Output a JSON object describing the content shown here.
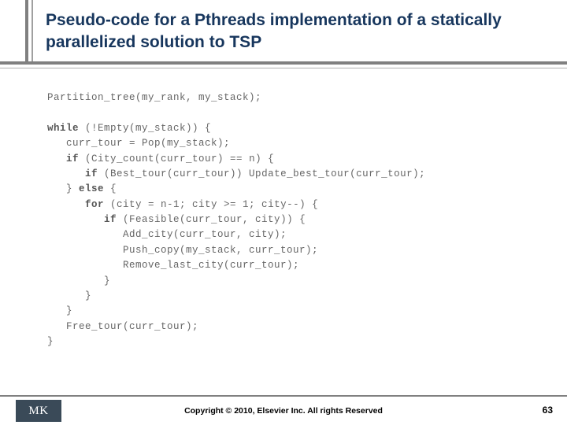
{
  "title": "Pseudo-code for a Pthreads implementation of a statically parallelized solution to TSP",
  "code": {
    "l01": "Partition_tree(my_rank, my_stack);",
    "l02_kw": "while",
    "l02_rest": " (!Empty(my_stack)) {",
    "l03": "   curr_tour = Pop(my_stack);",
    "l04_kw": "if",
    "l04_rest": " (City_count(curr_tour) == n) {",
    "l05_kw": "if",
    "l05_rest": " (Best_tour(curr_tour)) Update_best_tour(curr_tour);",
    "l06a": "   } ",
    "l06_kw": "else",
    "l06b": " {",
    "l07_kw": "for",
    "l07_rest": " (city = n-1; city >= 1; city--) {",
    "l08_kw": "if",
    "l08_rest": " (Feasible(curr_tour, city)) {",
    "l09": "            Add_city(curr_tour, city);",
    "l10": "            Push_copy(my_stack, curr_tour);",
    "l11": "            Remove_last_city(curr_tour);",
    "l12": "         }",
    "l13": "      }",
    "l14": "   }",
    "l15": "   Free_tour(curr_tour);",
    "l16": "}"
  },
  "logo": "MK",
  "copyright": "Copyright © 2010, Elsevier Inc. All rights Reserved",
  "page_number": "63",
  "colors": {
    "title_color": "#17365d",
    "rule_color": "#808080",
    "code_color": "#666666",
    "logo_bg": "#3a4a58",
    "background": "#ffffff"
  }
}
